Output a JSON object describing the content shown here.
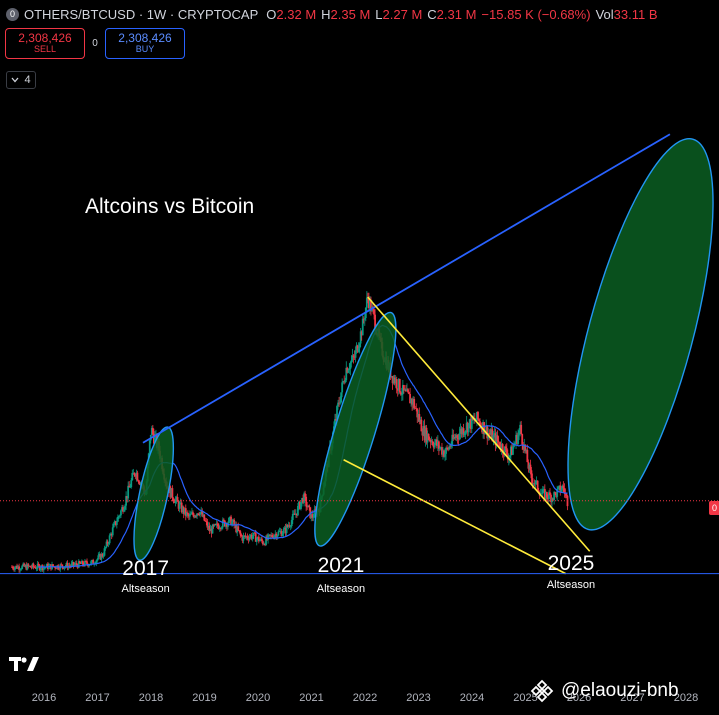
{
  "header": {
    "symbol_icon": "0",
    "title": "OTHERS/BTCUSD · 1W · CRYPTOCAP",
    "ohlc": [
      {
        "key": "O",
        "value": "2.32 M"
      },
      {
        "key": "H",
        "value": "2.35 M"
      },
      {
        "key": "L",
        "value": "2.27 M"
      },
      {
        "key": "C",
        "value": "2.31 M"
      },
      {
        "key": "",
        "value": "−15.85 K (−0.68%)"
      },
      {
        "key": "Vol",
        "value": "33.11 B"
      }
    ]
  },
  "trade": {
    "sell_price": "2,308,426",
    "sell_label": "SELL",
    "spread": "0",
    "buy_price": "2,308,426",
    "buy_label": "BUY"
  },
  "indicators_toggle": {
    "icon": "chevron-down-icon",
    "count": "4"
  },
  "price_tag": "0",
  "colors": {
    "background": "#000000",
    "up_candle": "#089981",
    "down_candle": "#f23645",
    "moving_average": "#2962ff",
    "trend_line": "#2962ff",
    "wedge_line": "#ffeb3b",
    "ellipse_fill": "#0b5e22",
    "ellipse_stroke": "#2196f3"
  },
  "chart_data": {
    "type": "line",
    "title": "Altcoins vs Bitcoin",
    "x_tick_labels": [
      "2016",
      "2017",
      "2018",
      "2019",
      "2020",
      "2021",
      "2022",
      "2023",
      "2024",
      "2025",
      "2026",
      "2027",
      "2028"
    ],
    "x": [
      2015.4,
      2016.0,
      2016.5,
      2016.9,
      2017.1,
      2017.3,
      2017.5,
      2017.7,
      2017.9,
      2018.0,
      2018.15,
      2018.3,
      2018.5,
      2018.7,
      2018.9,
      2019.1,
      2019.3,
      2019.5,
      2019.7,
      2019.9,
      2020.1,
      2020.3,
      2020.5,
      2020.7,
      2020.85,
      2021.0,
      2021.15,
      2021.3,
      2021.5,
      2021.65,
      2021.8,
      2021.95,
      2022.05,
      2022.15,
      2022.3,
      2022.5,
      2022.7,
      2022.9,
      2023.1,
      2023.3,
      2023.5,
      2023.7,
      2023.9,
      2024.1,
      2024.3,
      2024.5,
      2024.7,
      2024.9,
      2025.1,
      2025.3,
      2025.5,
      2025.7,
      2025.8
    ],
    "y": [
      0.52,
      0.52,
      0.54,
      0.58,
      0.7,
      1.1,
      1.45,
      1.95,
      1.6,
      2.55,
      2.25,
      1.7,
      1.45,
      1.25,
      1.35,
      1.05,
      1.15,
      1.2,
      0.95,
      0.98,
      0.88,
      1.0,
      1.05,
      1.3,
      1.55,
      1.25,
      1.4,
      2.05,
      2.9,
      3.45,
      3.6,
      4.05,
      4.5,
      4.25,
      3.75,
      3.35,
      3.1,
      2.95,
      2.5,
      2.35,
      2.2,
      2.45,
      2.6,
      2.7,
      2.5,
      2.35,
      2.15,
      2.55,
      1.85,
      1.6,
      1.55,
      1.7,
      1.45
    ],
    "annotations": [
      {
        "year": "2017",
        "subtitle": "Altseason"
      },
      {
        "year": "2021",
        "subtitle": "Altseason"
      },
      {
        "year": "2025",
        "subtitle": "Altseason"
      }
    ],
    "grid": false,
    "legend": false
  },
  "branding": {
    "logo": "tradingview-logo",
    "watermark_icon": "binance-icon",
    "watermark": "@elaouzi-bnb"
  }
}
